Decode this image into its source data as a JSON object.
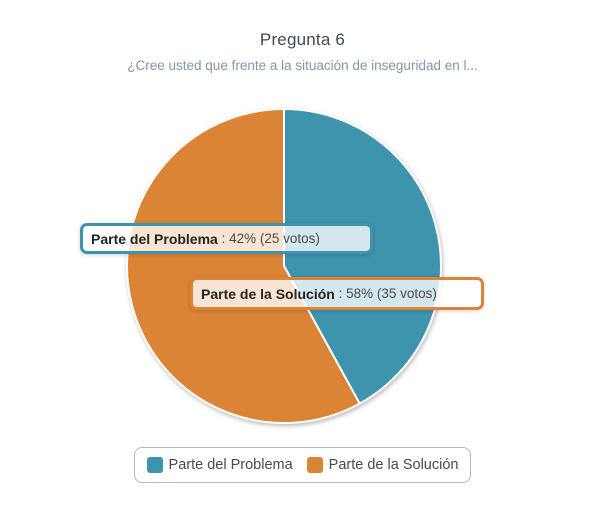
{
  "header": {
    "title": "Pregunta 6",
    "subtitle": "¿Cree usted que frente a la situación de inseguridad en l..."
  },
  "colors": {
    "teal": "#3E93AD",
    "orange": "#DB8435",
    "title_text": "#3e4a55",
    "subtitle_text": "#8397a9",
    "legend_text": "#4a4a4a"
  },
  "chart_data": {
    "type": "pie",
    "title": "Pregunta 6",
    "subtitle": "¿Cree usted que frente a la situación de inseguridad en l...",
    "series": [
      {
        "name": "Parte del Problema",
        "percent": 42,
        "votes": 25,
        "color": "#3E93AD"
      },
      {
        "name": "Parte de la Solución",
        "percent": 58,
        "votes": 35,
        "color": "#DB8435"
      }
    ],
    "start_angle_deg": 0,
    "direction": "clockwise",
    "legend_position": "bottom",
    "slice_border_color": "#ffffff"
  },
  "tooltips": [
    {
      "label": "Parte del Problema",
      "separator": " : ",
      "value": "42% (25 votos)",
      "border_color": "#3E93AD"
    },
    {
      "label": "Parte de la Solución",
      "separator": " : ",
      "value": "58% (35 votos)",
      "border_color": "#DB8435"
    }
  ],
  "legend": {
    "items": [
      {
        "label": "Parte del Problema",
        "color": "#3E93AD"
      },
      {
        "label": "Parte de la Solución",
        "color": "#DB8435"
      }
    ]
  }
}
